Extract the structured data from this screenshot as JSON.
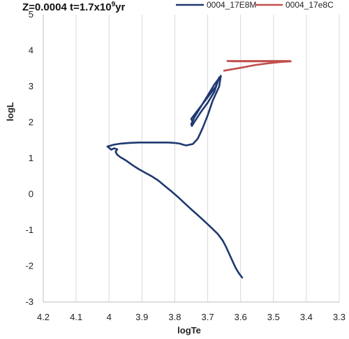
{
  "chart_data": {
    "type": "line",
    "title": "Z=0.0004 t=1.7x10",
    "title_exponent": "9",
    "title_suffix": "yr",
    "xlabel": "logTe",
    "ylabel": "logL",
    "xlim": [
      4.2,
      3.3
    ],
    "ylim": [
      -3,
      5
    ],
    "x_reversed": true,
    "xticks": [
      4.2,
      4.1,
      4,
      3.9,
      3.8,
      3.7,
      3.6,
      3.5,
      3.4,
      3.3
    ],
    "xtick_labels": [
      "4.2",
      "4.1",
      "4",
      "3.9",
      "3.8",
      "3.7",
      "3.6",
      "3.5",
      "3.4",
      "3.3"
    ],
    "yticks": [
      5,
      4,
      3,
      2,
      1,
      0,
      -1,
      -2,
      -3
    ],
    "ytick_labels": [
      "5",
      "4",
      "3",
      "2",
      "1",
      "0",
      "-1",
      "-2",
      "-3"
    ],
    "grid": "vertical",
    "legend_position": "top",
    "series": [
      {
        "name": "0004_17E8M",
        "color": "#1f3870",
        "x": [
          3.595,
          3.605,
          3.615,
          3.625,
          3.635,
          3.645,
          3.655,
          3.67,
          3.69,
          3.71,
          3.73,
          3.75,
          3.77,
          3.79,
          3.81,
          3.83,
          3.85,
          3.87,
          3.89,
          3.91,
          3.93,
          3.95,
          3.965,
          3.975,
          3.98,
          3.975,
          3.985,
          3.993,
          4.005,
          3.985,
          3.965,
          3.94,
          3.91,
          3.88,
          3.85,
          3.82,
          3.8,
          3.785,
          3.775,
          3.765,
          3.745,
          3.73,
          3.715,
          3.7,
          3.685,
          3.665,
          3.66,
          3.68,
          3.7,
          3.72,
          3.74,
          3.75,
          3.748,
          3.74,
          3.72,
          3.7,
          3.68,
          3.665,
          3.675,
          3.7,
          3.725,
          3.75,
          3.745
        ],
        "y": [
          -2.32,
          -2.2,
          -2.05,
          -1.85,
          -1.65,
          -1.45,
          -1.28,
          -1.1,
          -0.92,
          -0.75,
          -0.58,
          -0.42,
          -0.25,
          -0.08,
          0.08,
          0.23,
          0.38,
          0.5,
          0.6,
          0.7,
          0.82,
          0.95,
          1.03,
          1.1,
          1.18,
          1.25,
          1.28,
          1.24,
          1.33,
          1.38,
          1.41,
          1.43,
          1.44,
          1.44,
          1.44,
          1.44,
          1.43,
          1.41,
          1.38,
          1.36,
          1.4,
          1.55,
          1.85,
          2.2,
          2.6,
          3.0,
          3.3,
          3.05,
          2.75,
          2.45,
          2.15,
          1.95,
          1.9,
          2.02,
          2.3,
          2.55,
          2.85,
          3.25,
          3.0,
          2.7,
          2.4,
          2.1,
          2.0
        ]
      },
      {
        "name": "0004_17e8C",
        "color": "#c0504d",
        "x": [
          3.45,
          3.49,
          3.53,
          3.57,
          3.61,
          3.64,
          3.62,
          3.58,
          3.54,
          3.5,
          3.46,
          3.447,
          3.48,
          3.52,
          3.56,
          3.6,
          3.65
        ],
        "y": [
          3.71,
          3.71,
          3.71,
          3.71,
          3.71,
          3.71,
          3.7,
          3.7,
          3.7,
          3.7,
          3.71,
          3.7,
          3.68,
          3.64,
          3.59,
          3.52,
          3.44
        ]
      }
    ]
  }
}
